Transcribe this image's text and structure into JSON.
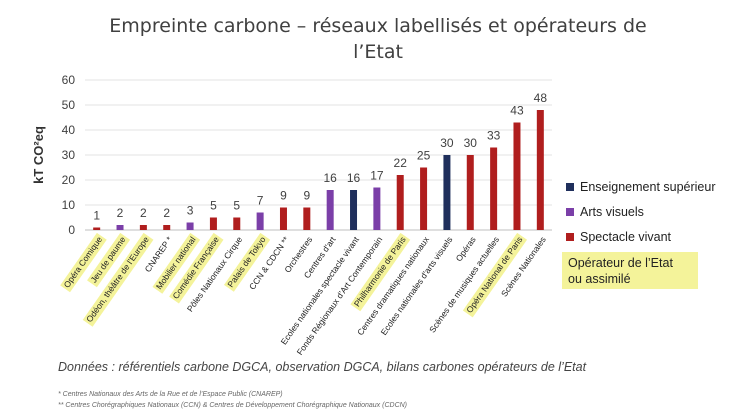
{
  "chart_data": {
    "type": "bar",
    "title_line1": "Empreinte carbone – réseaux labellisés et opérateurs de",
    "title_line2": "l’Etat",
    "ylabel": "kT CO²eq",
    "ylim": [
      0,
      60
    ],
    "yticks": [
      0,
      10,
      20,
      30,
      40,
      50,
      60
    ],
    "grid": true,
    "categories": [
      {
        "label": "Opéra Comique",
        "value": 1,
        "group": "Spectacle vivant",
        "operator": true
      },
      {
        "label": "Jeu de paume",
        "value": 2,
        "group": "Arts visuels",
        "operator": true
      },
      {
        "label": "Odéon, théâtre de l’Europe",
        "value": 2,
        "group": "Spectacle vivant",
        "operator": true
      },
      {
        "label": "CNAREP *",
        "value": 2,
        "group": "Spectacle vivant",
        "operator": false
      },
      {
        "label": "Mobilier national",
        "value": 3,
        "group": "Arts visuels",
        "operator": true
      },
      {
        "label": "Comédie Française",
        "value": 5,
        "group": "Spectacle vivant",
        "operator": true
      },
      {
        "label": "Pôles Nationaux Cirque",
        "value": 5,
        "group": "Spectacle vivant",
        "operator": false
      },
      {
        "label": "Palais de Tokyo",
        "value": 7,
        "group": "Arts visuels",
        "operator": true
      },
      {
        "label": "CCN & CDCN **",
        "value": 9,
        "group": "Spectacle vivant",
        "operator": false
      },
      {
        "label": "Orchestres",
        "value": 9,
        "group": "Spectacle vivant",
        "operator": false
      },
      {
        "label": "Centres d'art",
        "value": 16,
        "group": "Arts visuels",
        "operator": false
      },
      {
        "label": "Ecoles nationales spectacle vivant",
        "value": 16,
        "group": "Enseignement supérieur",
        "operator": false
      },
      {
        "label": "Fonds Régionaux d’Art Contemporain",
        "value": 17,
        "group": "Arts visuels",
        "operator": false
      },
      {
        "label": "Philharmonie de Paris",
        "value": 22,
        "group": "Spectacle vivant",
        "operator": true
      },
      {
        "label": "Centres dramatiques nationaux",
        "value": 25,
        "group": "Spectacle vivant",
        "operator": false
      },
      {
        "label": "Ecoles nationales d'arts visuels",
        "value": 30,
        "group": "Enseignement supérieur",
        "operator": false
      },
      {
        "label": "Opéras",
        "value": 30,
        "group": "Spectacle vivant",
        "operator": false
      },
      {
        "label": "Scènes de musiques actuelles",
        "value": 33,
        "group": "Spectacle vivant",
        "operator": false
      },
      {
        "label": "Opéra National de Paris",
        "value": 43,
        "group": "Spectacle vivant",
        "operator": true
      },
      {
        "label": "Scènes Nationales",
        "value": 48,
        "group": "Spectacle vivant",
        "operator": false
      }
    ],
    "legend": [
      {
        "name": "Enseignement supérieur",
        "color": "#1f2f5c"
      },
      {
        "name": "Arts visuels",
        "color": "#7b3fa8"
      },
      {
        "name": "Spectacle vivant",
        "color": "#b01e1e"
      }
    ],
    "operator_note_line1": "Opérateur de l’Etat",
    "operator_note_line2": "ou assimilé",
    "highlight_color": "#f4f39a",
    "source": "Données : référentiels carbone DGCA, observation DGCA, bilans carbones opérateurs de l’Etat",
    "footnote1": "* Centres Nationaux des Arts de la Rue et de l’Espace Public (CNAREP)",
    "footnote2": "** Centres Chorégraphiques Nationaux (CCN) & Centres de Développement Chorégraphique Nationaux (CDCN)"
  }
}
